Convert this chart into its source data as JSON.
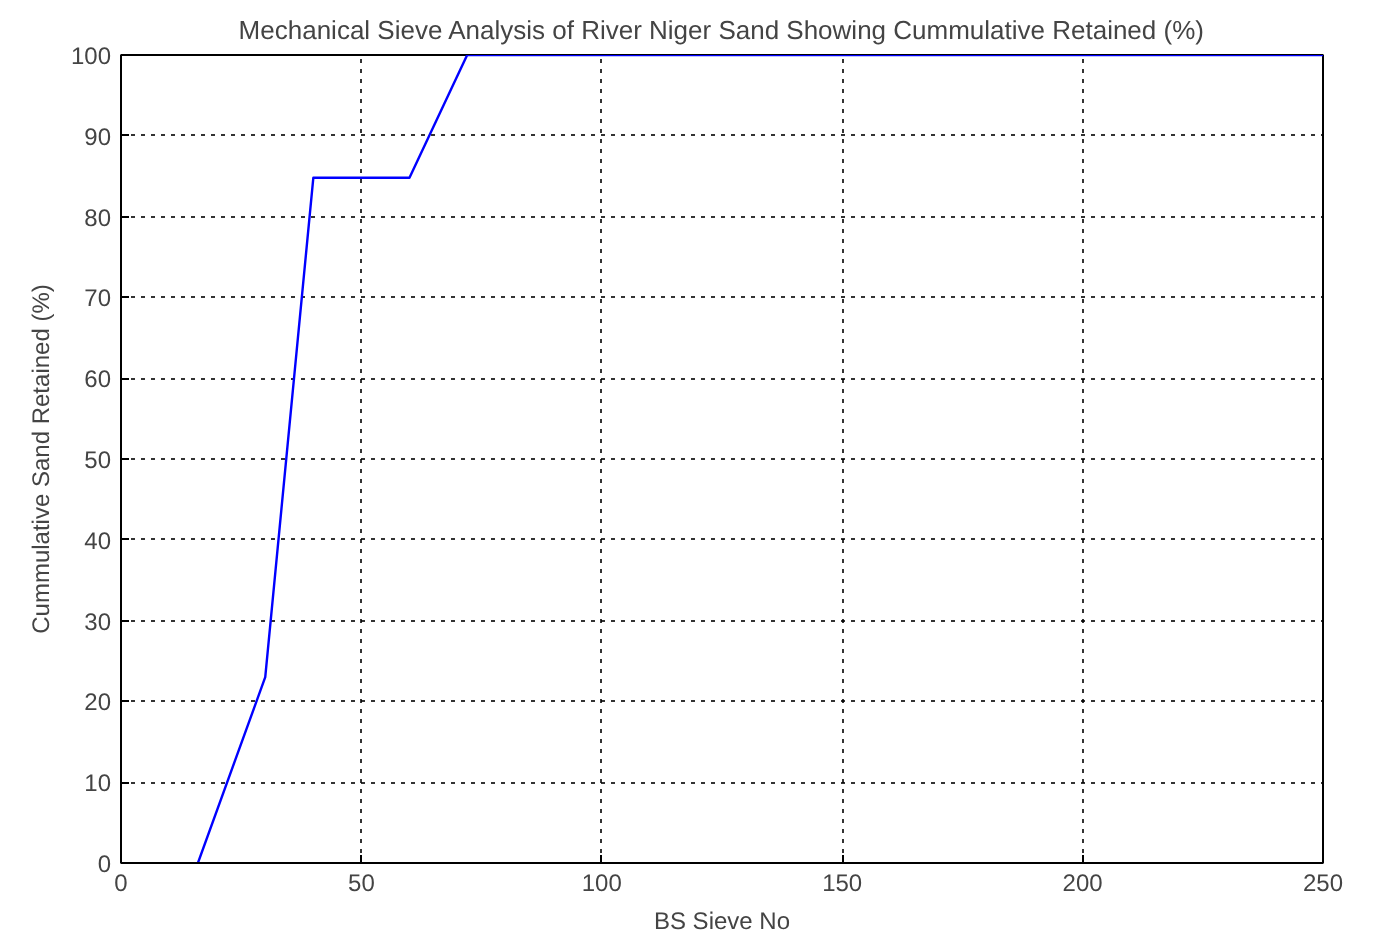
{
  "chart_data": {
    "type": "line",
    "title": "Mechanical Sieve Analysis of River Niger Sand Showing Cummulative Retained (%)",
    "xlabel": "BS Sieve No",
    "ylabel": "Cummulative Sand Retained (%)",
    "x": [
      16,
      30,
      40,
      60,
      72,
      250
    ],
    "series": [
      {
        "color": "#0000ff",
        "values": [
          0,
          23,
          84.8,
          84.8,
          100,
          100
        ]
      }
    ],
    "xlim": [
      0,
      250
    ],
    "ylim": [
      0,
      100
    ],
    "xticks": [
      0,
      50,
      100,
      150,
      200,
      250
    ],
    "yticks": [
      0,
      10,
      20,
      30,
      40,
      50,
      60,
      70,
      80,
      90,
      100
    ],
    "grid": true
  }
}
